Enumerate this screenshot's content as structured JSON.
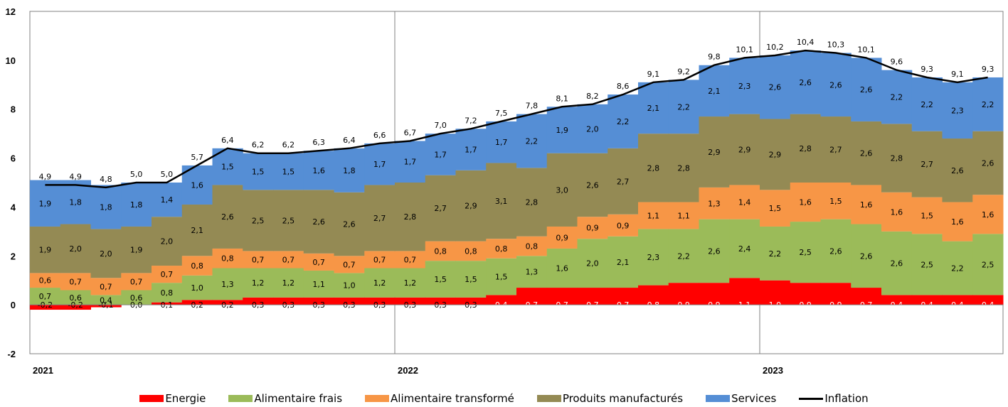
{
  "chart_data": {
    "type": "area",
    "stacked": true,
    "y_axis": {
      "min": -2,
      "max": 12,
      "ticks": [
        -2,
        0,
        2,
        4,
        6,
        8,
        10,
        12
      ]
    },
    "year_labels": [
      {
        "label": "2021",
        "month_index": 0
      },
      {
        "label": "2022",
        "month_index": 12
      },
      {
        "label": "2023",
        "month_index": 24
      }
    ],
    "series": [
      {
        "name": "Energie",
        "color": "#ff0000",
        "values": [
          -0.2,
          -0.2,
          -0.1,
          0.0,
          0.1,
          0.2,
          0.2,
          0.3,
          0.3,
          0.3,
          0.3,
          0.3,
          0.3,
          0.3,
          0.3,
          0.4,
          0.7,
          0.7,
          0.7,
          0.7,
          0.8,
          0.9,
          0.9,
          1.1,
          1.0,
          0.9,
          0.9,
          0.7,
          0.4,
          0.4,
          0.4,
          0.4
        ]
      },
      {
        "name": "Alimentaire frais",
        "color": "#9bbb59",
        "values": [
          0.7,
          0.6,
          0.4,
          0.6,
          0.8,
          1.0,
          1.3,
          1.2,
          1.2,
          1.1,
          1.0,
          1.2,
          1.2,
          1.5,
          1.5,
          1.5,
          1.3,
          1.6,
          2.0,
          2.1,
          2.3,
          2.2,
          2.6,
          2.4,
          2.2,
          2.5,
          2.6,
          2.6,
          2.6,
          2.5,
          2.2,
          2.5
        ]
      },
      {
        "name": "Alimentaire transformé",
        "color": "#f79646",
        "values": [
          0.6,
          0.7,
          0.7,
          0.7,
          0.7,
          0.8,
          0.8,
          0.7,
          0.7,
          0.7,
          0.7,
          0.7,
          0.7,
          0.8,
          0.8,
          0.8,
          0.8,
          0.9,
          0.9,
          0.9,
          1.1,
          1.1,
          1.3,
          1.4,
          1.5,
          1.6,
          1.5,
          1.6,
          1.6,
          1.5,
          1.6,
          1.6
        ]
      },
      {
        "name": "Produits manufacturés",
        "color": "#948a54",
        "values": [
          1.9,
          2.0,
          2.0,
          1.9,
          2.0,
          2.1,
          2.6,
          2.5,
          2.5,
          2.6,
          2.6,
          2.7,
          2.8,
          2.7,
          2.9,
          3.1,
          2.8,
          3.0,
          2.6,
          2.7,
          2.8,
          2.8,
          2.9,
          2.9,
          2.9,
          2.8,
          2.7,
          2.6,
          2.8,
          2.7,
          2.6,
          2.6
        ]
      },
      {
        "name": "Services",
        "color": "#558ed5",
        "values": [
          1.9,
          1.8,
          1.8,
          1.8,
          1.4,
          1.6,
          1.5,
          1.5,
          1.5,
          1.6,
          1.8,
          1.7,
          1.7,
          1.7,
          1.7,
          1.7,
          2.2,
          1.9,
          2.0,
          2.2,
          2.1,
          2.2,
          2.1,
          2.3,
          2.6,
          2.6,
          2.6,
          2.6,
          2.2,
          2.2,
          2.3,
          2.2
        ]
      }
    ],
    "line": {
      "name": "Inflation",
      "color": "#000000",
      "values": [
        4.9,
        4.9,
        4.8,
        5.0,
        5.0,
        5.7,
        6.4,
        6.2,
        6.2,
        6.3,
        6.4,
        6.6,
        6.7,
        7.0,
        7.2,
        7.5,
        7.8,
        8.1,
        8.2,
        8.6,
        9.1,
        9.2,
        9.8,
        10.1,
        10.2,
        10.4,
        10.3,
        10.1,
        9.6,
        9.3,
        9.1,
        9.3
      ]
    },
    "grid": "vertical lines at year boundaries",
    "legend_position": "bottom"
  }
}
